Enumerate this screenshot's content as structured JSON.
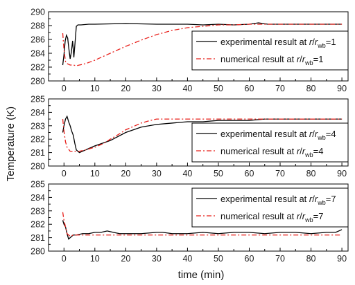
{
  "chart_data": [
    {
      "type": "line",
      "xlabel": "time (min)",
      "ylabel": "Temperature (K)",
      "xlim": [
        -5,
        92
      ],
      "ylim": [
        280,
        290
      ],
      "x_ticks": [
        0,
        10,
        20,
        30,
        40,
        50,
        60,
        70,
        80,
        90
      ],
      "y_ticks": [
        280,
        282,
        284,
        286,
        288,
        290
      ],
      "legend_position": "right",
      "series": [
        {
          "name": "experimental result at r/rwb=1",
          "legend": {
            "prefix": "experimental result at ",
            "italic1": "r",
            "mid": "/",
            "italic2": "r",
            "sub": "wb",
            "suffix": "=1"
          },
          "color": "#000000",
          "dash": "solid",
          "x": [
            -0.4,
            0,
            0.4,
            0.8,
            1.2,
            1.6,
            2.0,
            2.4,
            2.8,
            3.2,
            3.6,
            4.0,
            4.5,
            5.5,
            8,
            10,
            20,
            30,
            40,
            45,
            50,
            55,
            60,
            63,
            66,
            70,
            80,
            90
          ],
          "y": [
            282.3,
            283.8,
            285.8,
            286.6,
            286.2,
            284.6,
            283.2,
            284.2,
            285.8,
            283.4,
            285.6,
            287.9,
            288.1,
            288.1,
            288.2,
            288.2,
            288.3,
            288.2,
            288.2,
            288.1,
            288.2,
            288.1,
            288.2,
            288.4,
            288.2,
            288.2,
            288.2,
            288.2
          ]
        },
        {
          "name": "numerical result at r/rwb=1",
          "legend": {
            "prefix": "numerical result at ",
            "italic1": "r",
            "mid": "/",
            "italic2": "r",
            "sub": "wb",
            "suffix": "=1"
          },
          "color": "#e8201b",
          "dash": "dashdot",
          "x": [
            -0.4,
            0,
            0.5,
            1,
            2,
            3,
            4,
            5,
            7,
            10,
            15,
            20,
            25,
            30,
            35,
            40,
            45,
            50,
            55,
            60,
            70,
            80,
            90
          ],
          "y": [
            286.9,
            284.5,
            282.8,
            282.5,
            282.3,
            282.3,
            282.2,
            282.3,
            282.5,
            283.0,
            284.0,
            285.0,
            285.9,
            286.7,
            287.3,
            287.7,
            287.9,
            288.1,
            288.1,
            288.2,
            288.2,
            288.2,
            288.2
          ]
        }
      ]
    },
    {
      "type": "line",
      "xlim": [
        -5,
        92
      ],
      "ylim": [
        280,
        285
      ],
      "x_ticks": [
        0,
        10,
        20,
        30,
        40,
        50,
        60,
        70,
        80,
        90
      ],
      "y_ticks": [
        280,
        281,
        282,
        283,
        284,
        285
      ],
      "legend_position": "right",
      "series": [
        {
          "name": "experimental result at r/rwb=4",
          "legend": {
            "prefix": "experimental result at ",
            "italic1": "r",
            "mid": "/",
            "italic2": "r",
            "sub": "wb",
            "suffix": "=4"
          },
          "color": "#000000",
          "dash": "solid",
          "x": [
            -0.4,
            0,
            0.5,
            1,
            1.5,
            2,
            2.5,
            3,
            3.5,
            4,
            5,
            6,
            8,
            10,
            15,
            20,
            25,
            30,
            35,
            40,
            45,
            50,
            55,
            60,
            65,
            70,
            80,
            90
          ],
          "y": [
            282.5,
            283.0,
            283.5,
            283.7,
            283.3,
            283.0,
            282.6,
            282.3,
            281.7,
            281.2,
            281.0,
            281.1,
            281.3,
            281.5,
            281.9,
            282.5,
            282.9,
            283.1,
            283.2,
            283.3,
            283.3,
            283.4,
            283.4,
            283.4,
            283.5,
            283.5,
            283.5,
            283.5
          ]
        },
        {
          "name": "numerical result at r/rwb=4",
          "legend": {
            "prefix": "numerical result at ",
            "italic1": "r",
            "mid": "/",
            "italic2": "r",
            "sub": "wb",
            "suffix": "=4"
          },
          "color": "#e8201b",
          "dash": "dashdot",
          "x": [
            -0.4,
            0,
            0.5,
            1,
            2,
            3,
            4,
            5,
            7,
            10,
            13,
            15,
            18,
            20,
            22,
            25,
            28,
            30,
            35,
            40,
            50,
            60,
            70,
            80,
            90
          ],
          "y": [
            283.5,
            282.6,
            281.8,
            281.4,
            281.1,
            281.1,
            281.1,
            281.1,
            281.2,
            281.4,
            281.7,
            282.0,
            282.4,
            282.7,
            282.9,
            283.2,
            283.4,
            283.5,
            283.5,
            283.5,
            283.5,
            283.5,
            283.5,
            283.5,
            283.5
          ]
        }
      ]
    },
    {
      "type": "line",
      "xlim": [
        -5,
        92
      ],
      "ylim": [
        280,
        285
      ],
      "x_ticks": [
        0,
        10,
        20,
        30,
        40,
        50,
        60,
        70,
        80,
        90
      ],
      "y_ticks": [
        280,
        281,
        282,
        283,
        284,
        285
      ],
      "legend_position": "top-right",
      "series": [
        {
          "name": "experimental result at r/rwb=7",
          "legend": {
            "prefix": "experimental result at ",
            "italic1": "r",
            "mid": "/",
            "italic2": "r",
            "sub": "wb",
            "suffix": "=7"
          },
          "color": "#000000",
          "dash": "solid",
          "x": [
            -0.4,
            0,
            0.5,
            1,
            1.5,
            2,
            3,
            4,
            6,
            8,
            10,
            12,
            14,
            16,
            18,
            20,
            25,
            30,
            32,
            35,
            40,
            45,
            50,
            55,
            60,
            65,
            70,
            75,
            80,
            85,
            88,
            90
          ],
          "y": [
            282.3,
            282.0,
            281.8,
            281.3,
            280.9,
            281.0,
            281.2,
            281.2,
            281.3,
            281.3,
            281.4,
            281.4,
            281.5,
            281.4,
            281.3,
            281.3,
            281.3,
            281.4,
            281.4,
            281.3,
            281.3,
            281.4,
            281.3,
            281.4,
            281.4,
            281.3,
            281.4,
            281.4,
            281.3,
            281.4,
            281.4,
            281.6
          ]
        },
        {
          "name": "numerical result at r/rwb=7",
          "legend": {
            "prefix": "numerical result at ",
            "italic1": "r",
            "mid": "/",
            "italic2": "r",
            "sub": "wb",
            "suffix": "=7"
          },
          "color": "#e8201b",
          "dash": "dashdot",
          "x": [
            -0.4,
            0,
            0.5,
            1,
            2,
            3,
            5,
            10,
            20,
            30,
            40,
            50,
            60,
            70,
            80,
            90
          ],
          "y": [
            282.9,
            282.3,
            281.8,
            281.3,
            281.1,
            281.2,
            281.2,
            281.2,
            281.2,
            281.2,
            281.2,
            281.2,
            281.2,
            281.2,
            281.2,
            281.2
          ]
        }
      ]
    }
  ]
}
